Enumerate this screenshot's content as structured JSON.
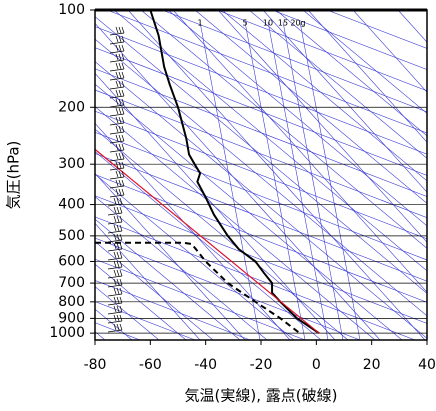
{
  "chart_data": {
    "type": "skewt",
    "xlabel": "気温(実線), 露点(破線)",
    "ylabel": "気圧(hPa)",
    "xlim": [
      -80,
      40
    ],
    "xticks": [
      -80,
      -60,
      -40,
      -20,
      0,
      20,
      40
    ],
    "ylim": [
      1050,
      100
    ],
    "yticks": [
      100,
      200,
      300,
      400,
      500,
      600,
      700,
      800,
      900,
      1000
    ],
    "log_y": true,
    "mixing_ratio_labels": [
      "1",
      "5",
      "10",
      "15",
      "20g"
    ],
    "series": [
      {
        "color": "#000000",
        "dash": false,
        "width": 2,
        "x": [
          -60,
          -57,
          -55,
          -53,
          -50,
          -47,
          -46,
          -44,
          -42,
          -43,
          -40,
          -37,
          -32,
          -28,
          -22,
          -19,
          -16,
          -16,
          -13,
          -7,
          1
        ],
        "y": [
          100,
          120,
          150,
          170,
          200,
          250,
          280,
          300,
          320,
          340,
          380,
          430,
          500,
          550,
          600,
          650,
          700,
          750,
          800,
          900,
          1000
        ]
      },
      {
        "color": "#000000",
        "dash": true,
        "width": 2,
        "x": [
          -80,
          -48,
          -45,
          -40,
          -32,
          -22,
          -13,
          -6
        ],
        "y": [
          525,
          525,
          530,
          600,
          700,
          800,
          900,
          1000
        ]
      },
      {
        "color": "#e0102a",
        "dash": false,
        "width": 1.2,
        "x": [
          -80,
          1
        ],
        "y": [
          270,
          1000
        ]
      }
    ]
  }
}
